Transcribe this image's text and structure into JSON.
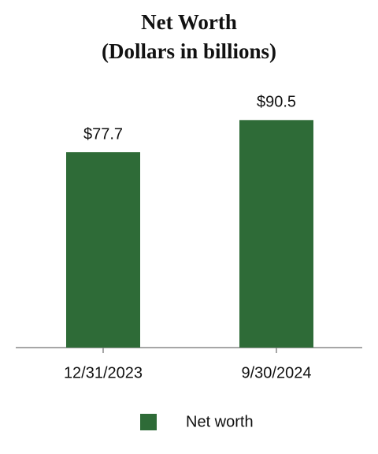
{
  "chart_data": {
    "type": "bar",
    "title": "Net Worth",
    "subtitle": "(Dollars in billions)",
    "categories": [
      "12/31/2023",
      "9/30/2024"
    ],
    "series": [
      {
        "name": "Net worth",
        "color": "#2e6b37",
        "values": [
          77.7,
          90.5
        ],
        "value_labels": [
          "$77.7",
          "$90.5"
        ]
      }
    ],
    "title_color": "#17384f"
  }
}
